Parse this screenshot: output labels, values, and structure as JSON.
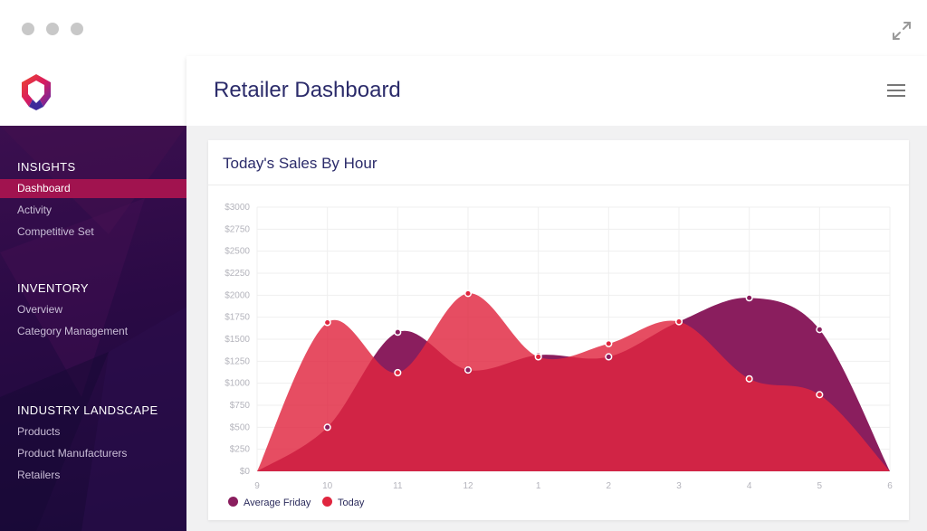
{
  "window": {
    "controls": [
      "window-dot",
      "window-dot",
      "window-dot"
    ],
    "expand_icon": "expand-arrows-icon"
  },
  "app": {
    "logo_icon": "brand-logo-icon",
    "title": "Retailer Dashboard",
    "menu_icon": "hamburger-menu-icon"
  },
  "sidebar": {
    "sections": [
      {
        "title": "INSIGHTS",
        "items": [
          "Dashboard",
          "Activity",
          "Competitive Set"
        ]
      },
      {
        "title": "INVENTORY",
        "items": [
          "Overview",
          "Category Management"
        ]
      },
      {
        "title": "INDUSTRY LANDSCAPE",
        "items": [
          "Products",
          "Product Manufacturers",
          "Retailers"
        ]
      }
    ],
    "active_item": "Dashboard"
  },
  "card": {
    "title": "Today's Sales By Hour"
  },
  "colors": {
    "accent": "#a1134f",
    "today": "#e0263f",
    "avg_friday": "#8a1e5e"
  },
  "chart_data": {
    "type": "area",
    "title": "Today's Sales By Hour",
    "categories": [
      "9",
      "10",
      "11",
      "12",
      "1",
      "2",
      "3",
      "4",
      "5",
      "6"
    ],
    "y_ticks": [
      "$0",
      "$250",
      "$500",
      "$750",
      "$1000",
      "$1250",
      "$1500",
      "$1750",
      "$2000",
      "$2250",
      "$2500",
      "$2750",
      "$3000"
    ],
    "ylim": [
      0,
      3000
    ],
    "grid": true,
    "legend_position": "bottom-left",
    "series": [
      {
        "name": "Average Friday",
        "color": "#8a1e5e",
        "values": [
          0,
          500,
          1580,
          1150,
          1320,
          1300,
          1700,
          1970,
          1610,
          0
        ]
      },
      {
        "name": "Today",
        "color": "#e0263f",
        "values": [
          0,
          1690,
          1120,
          2020,
          1300,
          1450,
          1700,
          1050,
          870,
          0
        ]
      }
    ]
  }
}
